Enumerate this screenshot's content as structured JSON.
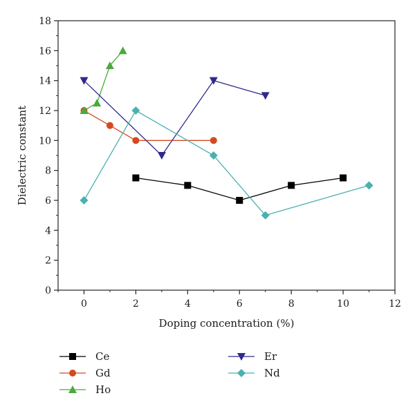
{
  "chart_data": {
    "type": "line",
    "xlabel": "Doping concentration (%)",
    "ylabel": "Dielectric constant",
    "xlim": [
      -1,
      12
    ],
    "ylim": [
      0,
      18
    ],
    "xticks": [
      0,
      2,
      4,
      6,
      8,
      10,
      12
    ],
    "yticks": [
      0,
      2,
      4,
      6,
      8,
      10,
      12,
      14,
      16,
      18
    ],
    "grid": false,
    "legend_position": "bottom",
    "series": [
      {
        "name": "Ce",
        "marker": "square",
        "color": "#000000",
        "x": [
          2,
          4,
          6,
          8,
          10
        ],
        "y": [
          7.5,
          7,
          6,
          7,
          7.5
        ]
      },
      {
        "name": "Gd",
        "marker": "circle",
        "color": "#d24b1f",
        "x": [
          0,
          1,
          2,
          5
        ],
        "y": [
          12,
          11,
          10,
          10
        ]
      },
      {
        "name": "Ho",
        "marker": "triangle-up",
        "color": "#4aaa3c",
        "x": [
          0,
          0.5,
          1,
          1.5
        ],
        "y": [
          12,
          12.5,
          15,
          16
        ]
      },
      {
        "name": "Er",
        "marker": "triangle-down",
        "color": "#2e2a8c",
        "x": [
          0,
          3,
          5,
          7
        ],
        "y": [
          14,
          9,
          14,
          13
        ]
      },
      {
        "name": "Nd",
        "marker": "diamond",
        "color": "#4ab0b0",
        "x": [
          0,
          2,
          5,
          7,
          11
        ],
        "y": [
          6,
          12,
          9,
          5,
          7
        ]
      }
    ]
  }
}
